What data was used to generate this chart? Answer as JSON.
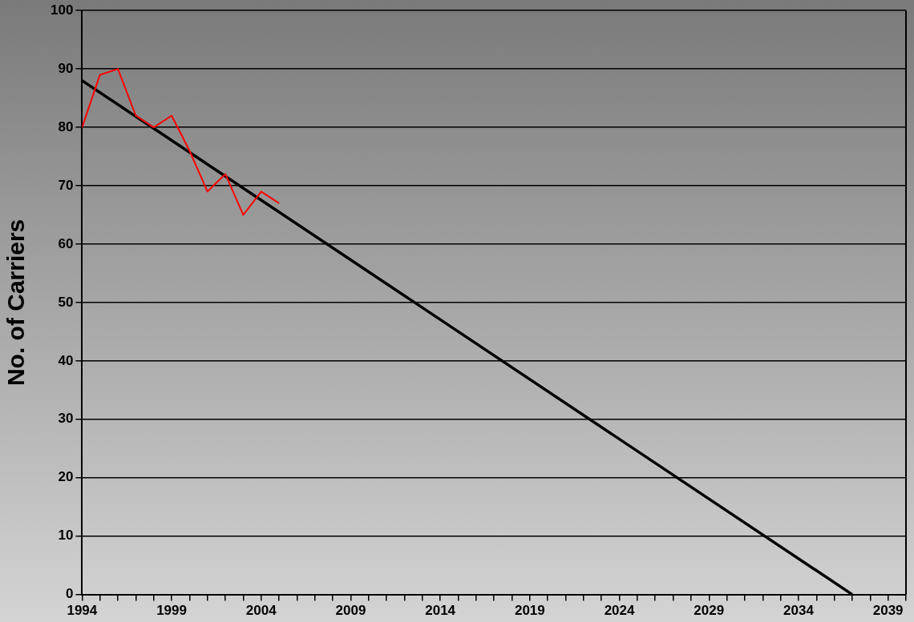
{
  "chart_data": {
    "type": "line",
    "ylabel": "No. of Carriers",
    "series": [
      {
        "color": "#ff0000",
        "x": [
          1994,
          1995,
          1996,
          1997,
          1998,
          1999,
          2000,
          2001,
          2002,
          2003,
          2004,
          2005
        ],
        "values": [
          80,
          89,
          90,
          82,
          80,
          82,
          76,
          69,
          72,
          65,
          69,
          67
        ]
      },
      {
        "color": "#000000",
        "x": [
          1994,
          2037
        ],
        "values": [
          88,
          0
        ]
      }
    ],
    "xlim": [
      1994,
      2040
    ],
    "xticks": [
      1994,
      {
        "value": 1995,
        "label": null
      },
      {
        "value": 1996,
        "label": null
      },
      {
        "value": 1997,
        "label": null
      },
      {
        "value": 1998,
        "label": null
      },
      1999,
      {
        "value": 2000,
        "label": null
      },
      {
        "value": 2001,
        "label": null
      },
      {
        "value": 2002,
        "label": null
      },
      {
        "value": 2003,
        "label": null
      },
      2004,
      {
        "value": 2005,
        "label": null
      },
      {
        "value": 2006,
        "label": null
      },
      {
        "value": 2007,
        "label": null
      },
      {
        "value": 2008,
        "label": null
      },
      2009,
      {
        "value": 2010,
        "label": null
      },
      {
        "value": 2011,
        "label": null
      },
      {
        "value": 2012,
        "label": null
      },
      {
        "value": 2013,
        "label": null
      },
      2014,
      {
        "value": 2015,
        "label": null
      },
      {
        "value": 2016,
        "label": null
      },
      {
        "value": 2017,
        "label": null
      },
      {
        "value": 2018,
        "label": null
      },
      2019,
      {
        "value": 2020,
        "label": null
      },
      {
        "value": 2021,
        "label": null
      },
      {
        "value": 2022,
        "label": null
      },
      {
        "value": 2023,
        "label": null
      },
      2024,
      {
        "value": 2025,
        "label": null
      },
      {
        "value": 2026,
        "label": null
      },
      {
        "value": 2027,
        "label": null
      },
      {
        "value": 2028,
        "label": null
      },
      2029,
      {
        "value": 2030,
        "label": null
      },
      {
        "value": 2031,
        "label": null
      },
      {
        "value": 2032,
        "label": null
      },
      {
        "value": 2033,
        "label": null
      },
      2034,
      {
        "value": 2035,
        "label": null
      },
      {
        "value": 2036,
        "label": null
      },
      {
        "value": 2037,
        "label": null
      },
      {
        "value": 2038,
        "label": null
      },
      2039,
      {
        "value": 2040,
        "label": null
      }
    ],
    "ylim": [
      0,
      100
    ],
    "yticks": [
      0,
      10,
      20,
      30,
      40,
      50,
      60,
      70,
      80,
      90,
      100
    ],
    "grid": "y",
    "legend": false,
    "marker": "none",
    "line_style": "solid"
  }
}
